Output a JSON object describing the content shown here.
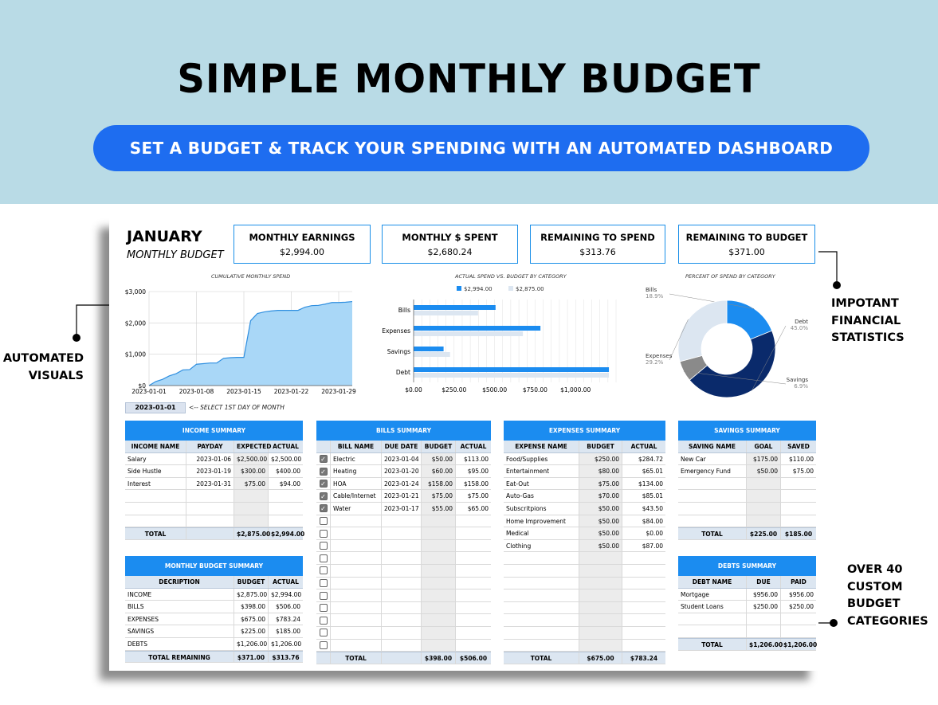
{
  "banner": {
    "title": "SIMPLE MONTHLY BUDGET",
    "subtitle": "SET A BUDGET & TRACK YOUR SPENDING WITH AN AUTOMATED DASHBOARD"
  },
  "header": {
    "month": "JANUARY",
    "subtitle": "MONTHLY BUDGET"
  },
  "stats": [
    {
      "label": "MONTHLY EARNINGS",
      "value": "$2,994.00"
    },
    {
      "label": "MONTHLY $ SPENT",
      "value": "$2,680.24"
    },
    {
      "label": "REMAINING TO SPEND",
      "value": "$313.76"
    },
    {
      "label": "REMAINING TO BUDGET",
      "value": "$371.00"
    }
  ],
  "date_selector": {
    "value": "2023-01-01",
    "hint": "<-- SELECT 1ST DAY OF MONTH"
  },
  "annotations": {
    "visuals": [
      "AUTOMATED",
      "VISUALS"
    ],
    "stats": [
      "IMPOTANT",
      "FINANCIAL",
      "STATISTICS"
    ],
    "categories": [
      "OVER 40",
      "CUSTOM",
      "BUDGET",
      "CATEGORIES"
    ]
  },
  "colors": {
    "accent": "#1b8cf0",
    "navy": "#0a2a6b",
    "light": "#dce6f1",
    "grey": "#8a8a8a"
  },
  "chart_data": [
    {
      "type": "area",
      "title": "CUMULATIVE MONTHLY SPEND",
      "x_ticks": [
        "2023-01-01",
        "2023-01-08",
        "2023-01-15",
        "2023-01-22",
        "2023-01-29"
      ],
      "y_ticks": [
        "$0",
        "$1,000",
        "$2,000",
        "$3,000"
      ],
      "ylim": [
        0,
        3000
      ],
      "x_day": [
        1,
        2,
        3,
        4,
        5,
        6,
        7,
        8,
        9,
        10,
        11,
        12,
        13,
        14,
        15,
        16,
        17,
        18,
        19,
        20,
        21,
        22,
        23,
        24,
        25,
        26,
        27,
        28,
        29,
        30,
        31
      ],
      "values": [
        0,
        130,
        200,
        310,
        380,
        500,
        510,
        680,
        700,
        720,
        720,
        870,
        890,
        900,
        900,
        2070,
        2300,
        2350,
        2380,
        2400,
        2400,
        2400,
        2400,
        2500,
        2550,
        2560,
        2600,
        2650,
        2650,
        2660,
        2680
      ],
      "grid": true
    },
    {
      "type": "bar",
      "orientation": "horizontal",
      "title": "ACTUAL SPEND VS. BUDGET BY CATEGORY",
      "categories": [
        "Bills",
        "Expenses",
        "Savings",
        "Debt"
      ],
      "series": [
        {
          "name": "$2,994.00",
          "values": [
            506,
            783.24,
            185,
            1206
          ]
        },
        {
          "name": "$2,875.00",
          "values": [
            398,
            675,
            225,
            1206
          ]
        }
      ],
      "x_ticks": [
        "$0.00",
        "$250.00",
        "$500.00",
        "$750.00",
        "$1,000.00"
      ],
      "xlim": [
        0,
        1250
      ],
      "legend": "top"
    },
    {
      "type": "pie",
      "title": "PERCENT OF SPEND BY CATEGORY",
      "slices": [
        {
          "label": "Bills",
          "pct": "18.9%",
          "value": 18.9
        },
        {
          "label": "Debt",
          "pct": "45.0%",
          "value": 45.0
        },
        {
          "label": "Savings",
          "pct": "6.9%",
          "value": 6.9
        },
        {
          "label": "Expenses",
          "pct": "29.2%",
          "value": 29.2
        }
      ]
    }
  ],
  "income": {
    "title": "INCOME SUMMARY",
    "columns": [
      "INCOME NAME",
      "PAYDAY",
      "EXPECTED",
      "ACTUAL"
    ],
    "rows": [
      [
        "Salary",
        "2023-01-06",
        "$2,500.00",
        "$2,500.00"
      ],
      [
        "Side Hustle",
        "2023-01-19",
        "$300.00",
        "$400.00"
      ],
      [
        "Interest",
        "2023-01-31",
        "$75.00",
        "$94.00"
      ],
      [
        "",
        "",
        "",
        ""
      ],
      [
        "",
        "",
        "",
        ""
      ],
      [
        "",
        "",
        "",
        ""
      ]
    ],
    "total": [
      "TOTAL",
      "",
      "$2,875.00",
      "$2,994.00"
    ]
  },
  "bills": {
    "title": "BILLS SUMMARY",
    "columns": [
      "",
      "BILL NAME",
      "DUE DATE",
      "BUDGET",
      "ACTUAL"
    ],
    "rows": [
      [
        true,
        "Electric",
        "2023-01-04",
        "$50.00",
        "$113.00"
      ],
      [
        true,
        "Heating",
        "2023-01-20",
        "$60.00",
        "$95.00"
      ],
      [
        true,
        "HOA",
        "2023-01-24",
        "$158.00",
        "$158.00"
      ],
      [
        true,
        "Cable/Internet",
        "2023-01-21",
        "$75.00",
        "$75.00"
      ],
      [
        true,
        "Water",
        "2023-01-17",
        "$55.00",
        "$65.00"
      ],
      [
        false,
        "",
        "",
        "",
        ""
      ],
      [
        false,
        "",
        "",
        "",
        ""
      ],
      [
        false,
        "",
        "",
        "",
        ""
      ],
      [
        false,
        "",
        "",
        "",
        ""
      ],
      [
        false,
        "",
        "",
        "",
        ""
      ],
      [
        false,
        "",
        "",
        "",
        ""
      ],
      [
        false,
        "",
        "",
        "",
        ""
      ],
      [
        false,
        "",
        "",
        "",
        ""
      ],
      [
        false,
        "",
        "",
        "",
        ""
      ],
      [
        false,
        "",
        "",
        "",
        ""
      ],
      [
        false,
        "",
        "",
        "",
        ""
      ]
    ],
    "total": [
      "",
      "TOTAL",
      "",
      "$398.00",
      "$506.00"
    ]
  },
  "expenses": {
    "title": "EXPENSES SUMMARY",
    "columns": [
      "EXPENSE NAME",
      "BUDGET",
      "ACTUAL"
    ],
    "rows": [
      [
        "Food/Supplies",
        "$250.00",
        "$284.72"
      ],
      [
        "Entertainment",
        "$80.00",
        "$65.01"
      ],
      [
        "Eat-Out",
        "$75.00",
        "$134.00"
      ],
      [
        "Auto-Gas",
        "$70.00",
        "$85.01"
      ],
      [
        "Subscritpions",
        "$50.00",
        "$43.50"
      ],
      [
        "Home Improvement",
        "$50.00",
        "$84.00"
      ],
      [
        "Medical",
        "$50.00",
        "$0.00"
      ],
      [
        "Clothing",
        "$50.00",
        "$87.00"
      ],
      [
        "",
        "",
        ""
      ],
      [
        "",
        "",
        ""
      ],
      [
        "",
        "",
        ""
      ],
      [
        "",
        "",
        ""
      ],
      [
        "",
        "",
        ""
      ],
      [
        "",
        "",
        ""
      ],
      [
        "",
        "",
        ""
      ],
      [
        "",
        "",
        ""
      ]
    ],
    "total": [
      "TOTAL",
      "$675.00",
      "$783.24"
    ]
  },
  "savings": {
    "title": "SAVINGS SUMMARY",
    "columns": [
      "SAVING NAME",
      "GOAL",
      "SAVED"
    ],
    "rows": [
      [
        "New Car",
        "$175.00",
        "$110.00"
      ],
      [
        "Emergency Fund",
        "$50.00",
        "$75.00"
      ],
      [
        "",
        "",
        ""
      ],
      [
        "",
        "",
        ""
      ],
      [
        "",
        "",
        ""
      ],
      [
        "",
        "",
        ""
      ]
    ],
    "total": [
      "TOTAL",
      "$225.00",
      "$185.00"
    ]
  },
  "monthly_summary": {
    "title": "MONTHLY BUDGET SUMMARY",
    "columns": [
      "DECRIPTION",
      "BUDGET",
      "ACTUAL"
    ],
    "rows": [
      [
        "INCOME",
        "$2,875.00",
        "$2,994.00"
      ],
      [
        "BILLS",
        "$398.00",
        "$506.00"
      ],
      [
        "EXPENSES",
        "$675.00",
        "$783.24"
      ],
      [
        "SAVINGS",
        "$225.00",
        "$185.00"
      ],
      [
        "DEBTS",
        "$1,206.00",
        "$1,206.00"
      ]
    ],
    "total": [
      "TOTAL REMAINING",
      "$371.00",
      "$313.76"
    ]
  },
  "debts": {
    "title": "DEBTS SUMMARY",
    "columns": [
      "DEBT NAME",
      "DUE",
      "PAID"
    ],
    "rows": [
      [
        "Mortgage",
        "$956.00",
        "$956.00"
      ],
      [
        "Student Loans",
        "$250.00",
        "$250.00"
      ],
      [
        "",
        "",
        ""
      ],
      [
        "",
        "",
        ""
      ]
    ],
    "total": [
      "TOTAL",
      "$1,206.00",
      "$1,206.00"
    ]
  }
}
